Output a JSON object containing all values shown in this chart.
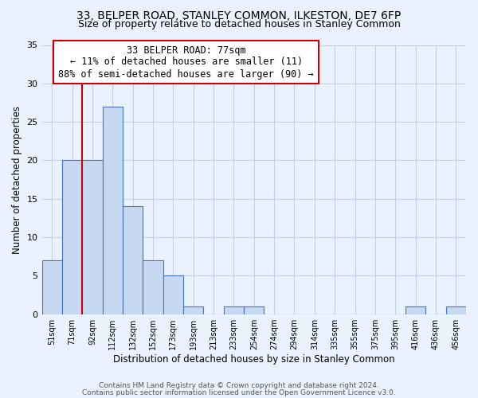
{
  "title": "33, BELPER ROAD, STANLEY COMMON, ILKESTON, DE7 6FP",
  "subtitle": "Size of property relative to detached houses in Stanley Common",
  "xlabel": "Distribution of detached houses by size in Stanley Common",
  "ylabel": "Number of detached properties",
  "footer_line1": "Contains HM Land Registry data © Crown copyright and database right 2024.",
  "footer_line2": "Contains public sector information licensed under the Open Government Licence v3.0.",
  "annotation_line1": "33 BELPER ROAD: 77sqm",
  "annotation_line2": "← 11% of detached houses are smaller (11)",
  "annotation_line3": "88% of semi-detached houses are larger (90) →",
  "bar_labels": [
    "51sqm",
    "71sqm",
    "92sqm",
    "112sqm",
    "132sqm",
    "152sqm",
    "173sqm",
    "193sqm",
    "213sqm",
    "233sqm",
    "254sqm",
    "274sqm",
    "294sqm",
    "314sqm",
    "335sqm",
    "355sqm",
    "375sqm",
    "395sqm",
    "416sqm",
    "436sqm",
    "456sqm"
  ],
  "bar_values": [
    7,
    20,
    20,
    27,
    14,
    7,
    5,
    1,
    0,
    1,
    1,
    0,
    0,
    0,
    0,
    0,
    0,
    0,
    1,
    0,
    1
  ],
  "bar_color": "#c6d9f0",
  "bar_edge_color": "#4472c4",
  "grid_color": "#c0d0e8",
  "background_color": "#eaf2ff",
  "vline_x": 1.5,
  "vline_color": "#cc0000",
  "ylim": [
    0,
    35
  ],
  "yticks": [
    0,
    5,
    10,
    15,
    20,
    25,
    30,
    35
  ],
  "title_fontsize": 10,
  "subtitle_fontsize": 9,
  "annotation_box_edge_color": "#cc0000",
  "annotation_box_face_color": "#ffffff",
  "annotation_fontsize": 8.5
}
